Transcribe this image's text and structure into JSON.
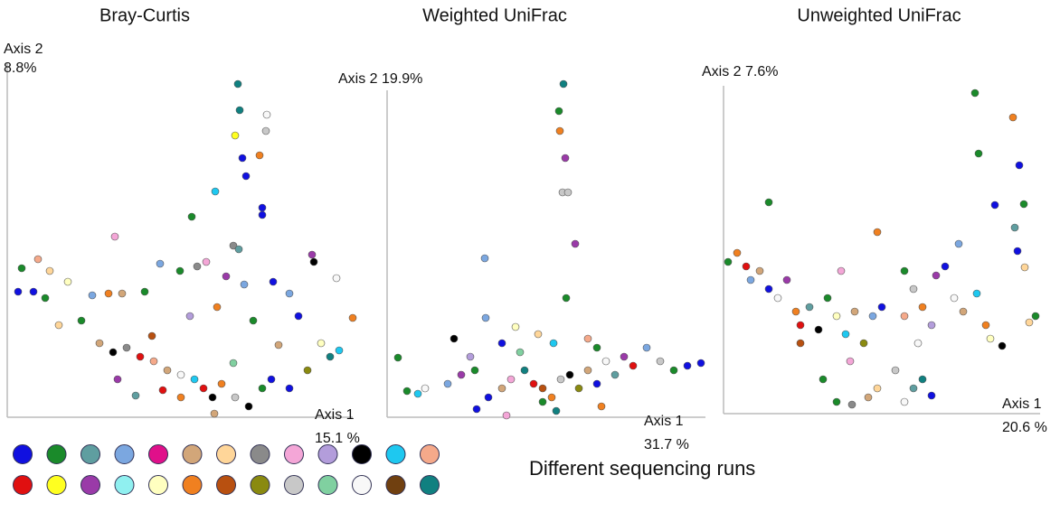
{
  "chart_data": [
    {
      "type": "scatter",
      "title": "Bray-Curtis",
      "xlabel": [
        "Axis 1",
        "15.1 %"
      ],
      "ylabel": [
        "Axis 2",
        "8.8%"
      ],
      "xlim": [
        0,
        382
      ],
      "ylim": [
        0,
        392
      ],
      "x": [
        255,
        257,
        287,
        252,
        286,
        260,
        279,
        230,
        264,
        204,
        282,
        282,
        119,
        250,
        256,
        16,
        34,
        47,
        12,
        29,
        42,
        67,
        94,
        112,
        127,
        152,
        169,
        191,
        210,
        220,
        242,
        262,
        294,
        312,
        337,
        339,
        364,
        382,
        322,
        202,
        232,
        272,
        57,
        82,
        102,
        117,
        132,
        147,
        162,
        177,
        192,
        207,
        217,
        227,
        237,
        252,
        267,
        282,
        292,
        312,
        332,
        347,
        357,
        367,
        172,
        142,
        122,
        192,
        229,
        160,
        250,
        300
      ],
      "y": [
        369,
        340,
        335,
        312,
        317,
        287,
        290,
        250,
        267,
        222,
        232,
        224,
        200,
        190,
        186,
        165,
        175,
        162,
        139,
        139,
        132,
        150,
        135,
        137,
        137,
        139,
        170,
        162,
        167,
        172,
        156,
        147,
        150,
        137,
        180,
        172,
        154,
        110,
        112,
        112,
        122,
        107,
        102,
        107,
        82,
        72,
        77,
        67,
        62,
        52,
        47,
        42,
        32,
        22,
        37,
        22,
        12,
        32,
        42,
        32,
        52,
        82,
        67,
        74,
        30,
        24,
        42,
        22,
        4,
        90,
        60,
        80
      ],
      "colors": [
        "#108080",
        "#108080",
        "#f8f8f8",
        "#ffff20",
        "#c8c8c8",
        "#1010e0",
        "#f08020",
        "#1ec8f0",
        "#1010e0",
        "#1a8a2a",
        "#1010e0",
        "#1010e0",
        "#f4a6d7",
        "#8a8a8a",
        "#5f9ea0",
        "#1a8a2a",
        "#f5a98a",
        "#ffd699",
        "#1010e0",
        "#1010e0",
        "#1a8a2a",
        "#ffffc0",
        "#7ba7e0",
        "#f08020",
        "#d2a679",
        "#1a8a2a",
        "#7ba7e0",
        "#1a8a2a",
        "#8a8a8a",
        "#f4a6d7",
        "#9a3aa8",
        "#7ba7e0",
        "#1010e0",
        "#7ba7e0",
        "#9a3aa8",
        "#000000",
        "#f8f8f8",
        "#f08020",
        "#1010e0",
        "#b39ddb",
        "#f08020",
        "#1a8a2a",
        "#ffd699",
        "#1a8a2a",
        "#d2a679",
        "#000000",
        "#8a8a8a",
        "#e01010",
        "#f5a98a",
        "#d2a679",
        "#f8f8f8",
        "#1ec8f0",
        "#e01010",
        "#000000",
        "#f08020",
        "#c8c8c8",
        "#000000",
        "#1a8a2a",
        "#1010e0",
        "#1010e0",
        "#8a8a10",
        "#ffffc0",
        "#108080",
        "#1ec8f0",
        "#e01010",
        "#5f9ea0",
        "#9a3aa8",
        "#f08020",
        "#d2a679",
        "#b85010",
        "#80d0a0",
        "#d2a679"
      ]
    },
    {
      "type": "scatter",
      "title": "Weighted UniFrac",
      "xlabel": [
        "Axis 1",
        "31.7 %"
      ],
      "ylabel": [
        "Axis 2 19.9%"
      ],
      "xlim": [
        0,
        352
      ],
      "ylim": [
        0,
        362
      ],
      "x": [
        195,
        190,
        191,
        197,
        194,
        200,
        208,
        108,
        198,
        109,
        142,
        74,
        12,
        22,
        34,
        42,
        67,
        82,
        97,
        112,
        127,
        137,
        152,
        162,
        172,
        182,
        192,
        202,
        212,
        222,
        232,
        242,
        252,
        262,
        272,
        287,
        302,
        317,
        332,
        347,
        127,
        147,
        167,
        184,
        222,
        232,
        99,
        132,
        187,
        237,
        92,
        172
      ],
      "y": [
        369,
        339,
        317,
        287,
        249,
        249,
        192,
        176,
        132,
        110,
        100,
        87,
        66,
        29,
        26,
        32,
        37,
        47,
        52,
        22,
        32,
        42,
        52,
        37,
        32,
        22,
        42,
        47,
        32,
        52,
        37,
        62,
        47,
        67,
        57,
        77,
        62,
        52,
        57,
        60,
        82,
        72,
        92,
        82,
        87,
        77,
        9,
        2,
        7,
        12,
        67,
        17
      ],
      "colors": [
        "#108080",
        "#1a8a2a",
        "#f08020",
        "#9a3aa8",
        "#c8c8c8",
        "#c8c8c8",
        "#9a3aa8",
        "#7ba7e0",
        "#1a8a2a",
        "#7ba7e0",
        "#ffffc0",
        "#000000",
        "#1a8a2a",
        "#1a8a2a",
        "#1ec8f0",
        "#f8f8f8",
        "#7ba7e0",
        "#9a3aa8",
        "#1a8a2a",
        "#1010e0",
        "#d2a679",
        "#f4a6d7",
        "#108080",
        "#e01010",
        "#b85010",
        "#f08020",
        "#c8c8c8",
        "#000000",
        "#8a8a10",
        "#d2a679",
        "#1010e0",
        "#f8f8f8",
        "#5f9ea0",
        "#9a3aa8",
        "#e01010",
        "#7ba7e0",
        "#c8c8c8",
        "#1a8a2a",
        "#1010e0",
        "#1010e0",
        "#1010e0",
        "#80d0a0",
        "#ffd699",
        "#1ec8f0",
        "#f5a98a",
        "#1a8a2a",
        "#1010e0",
        "#f4a6d7",
        "#108080",
        "#f08020",
        "#b39ddb",
        "#1a8a2a"
      ]
    },
    {
      "type": "scatter",
      "title": "Unweighted UniFrac",
      "xlabel": [
        "Axis 1",
        "20.6 %"
      ],
      "ylabel": [
        "Axis 2 7.6%"
      ],
      "xlim": [
        0,
        350
      ],
      "ylim": [
        0,
        363
      ],
      "x": [
        278,
        320,
        282,
        327,
        332,
        300,
        50,
        170,
        322,
        325,
        333,
        345,
        338,
        308,
        5,
        15,
        25,
        30,
        40,
        50,
        60,
        70,
        80,
        85,
        95,
        105,
        115,
        125,
        135,
        145,
        155,
        165,
        175,
        200,
        210,
        220,
        235,
        245,
        255,
        265,
        280,
        290,
        295,
        200,
        215,
        230,
        140,
        110,
        125,
        142,
        170,
        190,
        200,
        210,
        230,
        160,
        220,
        85,
        130,
        260
      ],
      "y": [
        355,
        328,
        288,
        275,
        232,
        231,
        234,
        201,
        206,
        180,
        162,
        108,
        101,
        75,
        168,
        178,
        163,
        148,
        158,
        138,
        128,
        148,
        113,
        98,
        118,
        93,
        128,
        108,
        88,
        113,
        78,
        108,
        118,
        158,
        138,
        118,
        153,
        163,
        128,
        113,
        133,
        98,
        83,
        108,
        78,
        98,
        58,
        38,
        13,
        10,
        28,
        48,
        13,
        28,
        20,
        18,
        38,
        78,
        158,
        188
      ],
      "colors": [
        "#1a8a2a",
        "#f08020",
        "#1a8a2a",
        "#1010e0",
        "#1a8a2a",
        "#1010e0",
        "#1a8a2a",
        "#f08020",
        "#5f9ea0",
        "#1010e0",
        "#ffd699",
        "#1a8a2a",
        "#ffd699",
        "#000000",
        "#1a8a2a",
        "#f08020",
        "#e01010",
        "#7ba7e0",
        "#d2a679",
        "#1010e0",
        "#f8f8f8",
        "#9a3aa8",
        "#f08020",
        "#e01010",
        "#5f9ea0",
        "#000000",
        "#1a8a2a",
        "#ffffc0",
        "#1ec8f0",
        "#d2a679",
        "#8a8a10",
        "#7ba7e0",
        "#1010e0",
        "#1a8a2a",
        "#c8c8c8",
        "#f08020",
        "#9a3aa8",
        "#1010e0",
        "#f8f8f8",
        "#d2a679",
        "#1ec8f0",
        "#f08020",
        "#ffffc0",
        "#f5a98a",
        "#f8f8f8",
        "#b39ddb",
        "#f4a6d7",
        "#1a8a2a",
        "#1a8a2a",
        "#8a8a8a",
        "#ffd699",
        "#c8c8c8",
        "#f8f8f8",
        "#5f9ea0",
        "#1010e0",
        "#d2a679",
        "#108080",
        "#b85010",
        "#f4a6d7",
        "#7ba7e0"
      ]
    }
  ],
  "legend": {
    "title": "Different sequencing runs",
    "colors": [
      [
        "#1010e0",
        "#1a8a2a",
        "#5f9ea0",
        "#7ba7e0",
        "#e0108a",
        "#d2a679",
        "#ffd699",
        "#8a8a8a",
        "#f4a6d7",
        "#b39ddb",
        "#000000",
        "#1ec8f0",
        "#f5a98a"
      ],
      [
        "#e01010",
        "#ffff20",
        "#9a3aa8",
        "#90f0f0",
        "#ffffc0",
        "#f08020",
        "#b85010",
        "#8a8a10",
        "#c8c8c8",
        "#80d0a0",
        "#f8f8f8",
        "#704010",
        "#108080"
      ]
    ]
  }
}
